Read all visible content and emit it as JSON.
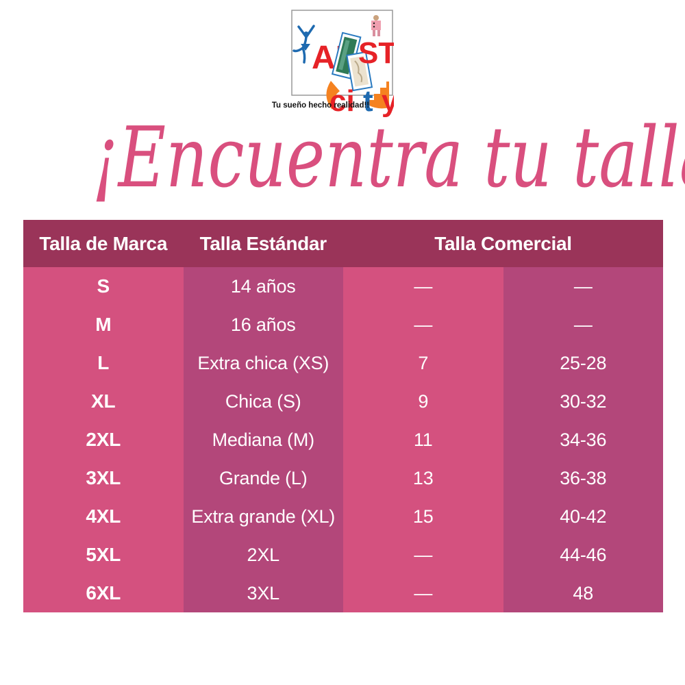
{
  "logo": {
    "brand_prefix": "AR",
    "brand_suffix": "ST",
    "city_ci": "ci",
    "city_t": "t",
    "city_y": "y",
    "tagline": "Tu sueño hecho realidad!!"
  },
  "title": "¡Encuentra tu talla!",
  "table": {
    "headers": [
      "Talla de Marca",
      "Talla Estándar",
      "Talla Comercial"
    ],
    "rows": [
      [
        "S",
        "14 años",
        "—",
        "—"
      ],
      [
        "M",
        "16 años",
        "—",
        "—"
      ],
      [
        "L",
        "Extra chica (XS)",
        "7",
        "25-28"
      ],
      [
        "XL",
        "Chica (S)",
        "9",
        "30-32"
      ],
      [
        "2XL",
        "Mediana (M)",
        "11",
        "34-36"
      ],
      [
        "3XL",
        "Grande (L)",
        "13",
        "36-38"
      ],
      [
        "4XL",
        "Extra grande (XL)",
        "15",
        "40-42"
      ],
      [
        "5XL",
        "2XL",
        "—",
        "44-46"
      ],
      [
        "6XL",
        "3XL",
        "—",
        "48"
      ]
    ]
  },
  "colors": {
    "header_bg": "#9a3459",
    "col_bright": "#d4517f",
    "col_dark": "#b3477a",
    "title_pink": "#d94f7e",
    "logo_red": "#e62227",
    "logo_blue": "#1e6ab0",
    "logo_orange": "#f58220",
    "text_white": "#ffffff"
  }
}
